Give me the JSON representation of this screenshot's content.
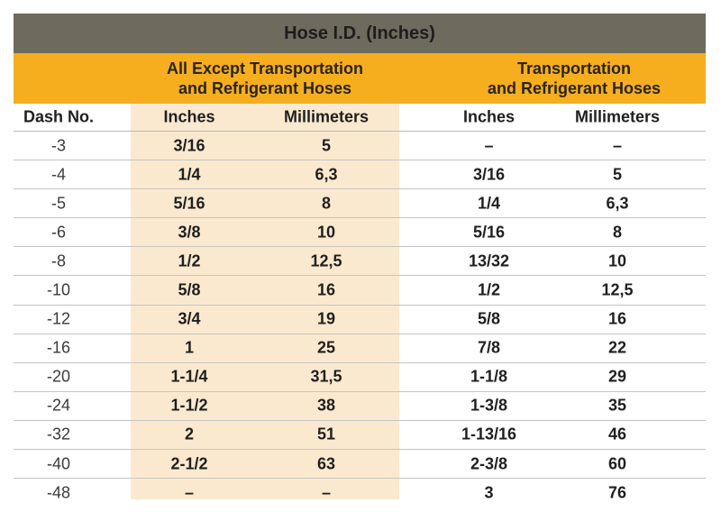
{
  "table": {
    "title": "Hose I.D. (Inches)",
    "group_left": [
      "All Except Transportation",
      "and Refrigerant Hoses"
    ],
    "group_right": [
      "Transportation",
      "and Refrigerant Hoses"
    ],
    "headers": [
      "Dash No.",
      "Inches",
      "Millimeters",
      "Inches",
      "Millimeters"
    ],
    "rows": [
      [
        "-3",
        "3/16",
        "5",
        "–",
        "–"
      ],
      [
        "-4",
        "1/4",
        "6,3",
        "3/16",
        "5"
      ],
      [
        "-5",
        "5/16",
        "8",
        "1/4",
        "6,3"
      ],
      [
        "-6",
        "3/8",
        "10",
        "5/16",
        "8"
      ],
      [
        "-8",
        "1/2",
        "12,5",
        "13/32",
        "10"
      ],
      [
        "-10",
        "5/8",
        "16",
        "1/2",
        "12,5"
      ],
      [
        "-12",
        "3/4",
        "19",
        "5/8",
        "16"
      ],
      [
        "-16",
        "1",
        "25",
        "7/8",
        "22"
      ],
      [
        "-20",
        "1-1/4",
        "31,5",
        "1-1/8",
        "29"
      ],
      [
        "-24",
        "1-1/2",
        "38",
        "1-3/8",
        "35"
      ],
      [
        "-32",
        "2",
        "51",
        "1-13/16",
        "46"
      ],
      [
        "-40",
        "2-1/2",
        "63",
        "2-3/8",
        "60"
      ],
      [
        "-48",
        "–",
        "–",
        "3",
        "76"
      ]
    ],
    "colors": {
      "title_bar": "#6f6a5e",
      "group_bar": "#f6ae1e",
      "column_shade": "#fbe9cf"
    }
  }
}
